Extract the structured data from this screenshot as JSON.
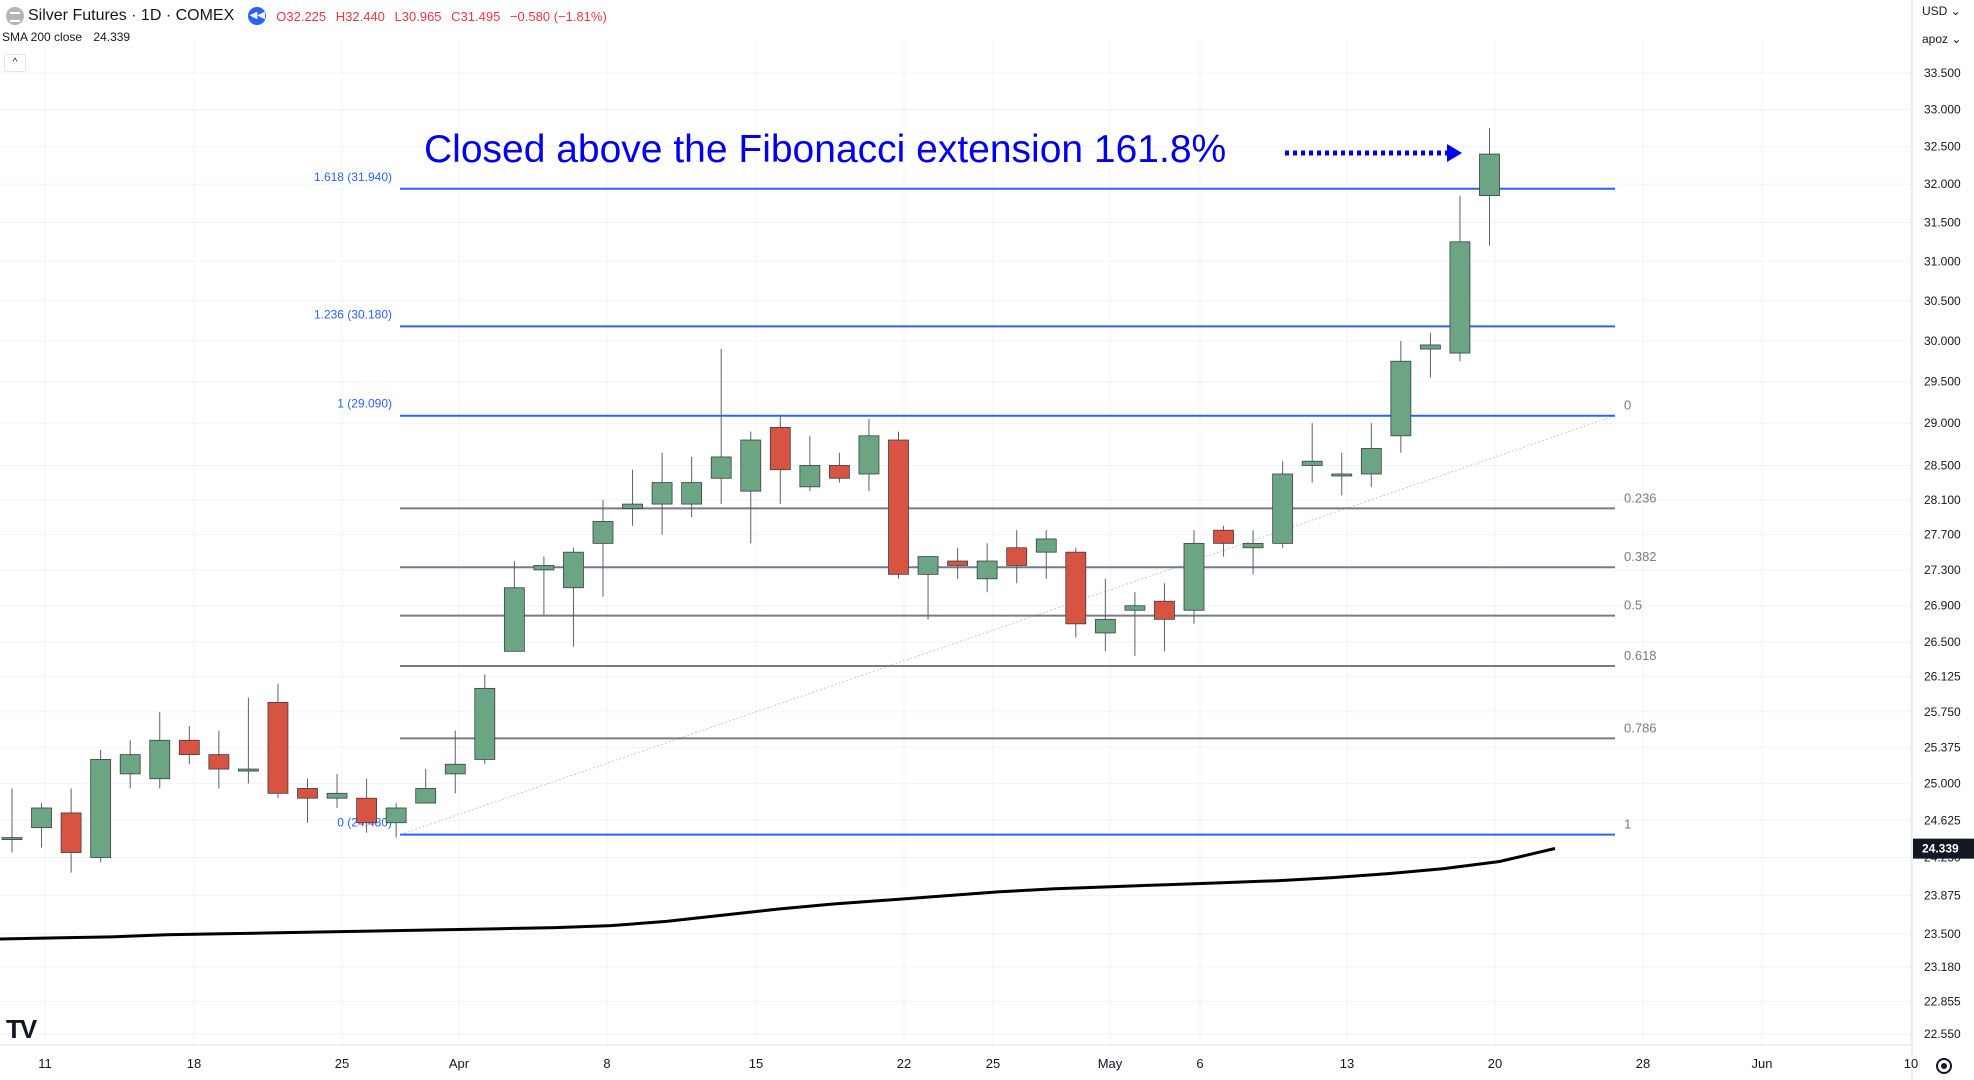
{
  "header": {
    "symbol": "Silver Futures · 1D · COMEX",
    "open": "O32.225",
    "high": "H32.440",
    "low": "L30.965",
    "close": "C31.495",
    "change": "−0.580 (−1.81%)"
  },
  "indicator": {
    "label": "SMA 200 close",
    "value": "24.339"
  },
  "collapse_label": "^",
  "price_axis": {
    "currency": "USD ⌄",
    "mode": "apoz ⌄",
    "labels": [
      "33.500",
      "33.000",
      "32.500",
      "32.000",
      "31.500",
      "31.000",
      "30.500",
      "30.000",
      "29.500",
      "29.000",
      "28.500",
      "28.100",
      "27.700",
      "27.300",
      "26.900",
      "26.500",
      "26.125",
      "25.750",
      "25.375",
      "25.000",
      "24.625",
      "24.250",
      "23.875",
      "23.500",
      "23.180",
      "22.855",
      "22.550"
    ],
    "current_label": "24.339"
  },
  "time_axis": {
    "labels": [
      "11",
      "18",
      "25",
      "Apr",
      "8",
      "15",
      "22",
      "25",
      "May",
      "6",
      "13",
      "20",
      "28",
      "Jun",
      "10"
    ]
  },
  "annotation": "Closed above the Fibonacci extension 161.8%",
  "fib_extension_labels": [
    "1.618 (31.940)",
    "1.236 (30.180)",
    "1 (29.090)",
    "0 (24.480)"
  ],
  "fib_retracement_labels": [
    "0",
    "0.236",
    "0.382",
    "0.5",
    "0.618",
    "0.786",
    "1"
  ],
  "chart_data": {
    "type": "candlestick",
    "symbol": "Silver Futures",
    "interval": "1D",
    "y_axis_scale": "log",
    "ylim": [
      22.55,
      33.5
    ],
    "up_color": "#6ba583",
    "down_color": "#d75442",
    "candles": [
      {
        "x": "Mar 8",
        "o": 24.45,
        "h": 24.95,
        "l": 24.3,
        "c": 24.45
      },
      {
        "x": "Mar 11",
        "o": 24.55,
        "h": 24.8,
        "l": 24.35,
        "c": 24.75
      },
      {
        "x": "Mar 12",
        "o": 24.7,
        "h": 24.95,
        "l": 24.1,
        "c": 24.3
      },
      {
        "x": "Mar 13",
        "o": 24.25,
        "h": 25.35,
        "l": 24.2,
        "c": 25.25
      },
      {
        "x": "Mar 14",
        "o": 25.1,
        "h": 25.45,
        "l": 24.95,
        "c": 25.3
      },
      {
        "x": "Mar 15",
        "o": 25.05,
        "h": 25.75,
        "l": 24.95,
        "c": 25.45
      },
      {
        "x": "Mar 18",
        "o": 25.45,
        "h": 25.6,
        "l": 25.2,
        "c": 25.3
      },
      {
        "x": "Mar 19",
        "o": 25.3,
        "h": 25.55,
        "l": 24.95,
        "c": 25.15
      },
      {
        "x": "Mar 20",
        "o": 25.15,
        "h": 25.9,
        "l": 25.0,
        "c": 25.15
      },
      {
        "x": "Mar 21",
        "o": 25.85,
        "h": 26.05,
        "l": 24.85,
        "c": 24.9
      },
      {
        "x": "Mar 22",
        "o": 24.95,
        "h": 25.05,
        "l": 24.6,
        "c": 24.85
      },
      {
        "x": "Mar 25",
        "o": 24.85,
        "h": 25.1,
        "l": 24.75,
        "c": 24.9
      },
      {
        "x": "Mar 26",
        "o": 24.85,
        "h": 25.05,
        "l": 24.5,
        "c": 24.6
      },
      {
        "x": "Mar 27",
        "o": 24.6,
        "h": 24.8,
        "l": 24.45,
        "c": 24.75
      },
      {
        "x": "Mar 28",
        "o": 24.8,
        "h": 25.15,
        "l": 24.8,
        "c": 24.95
      },
      {
        "x": "Apr 1",
        "o": 25.1,
        "h": 25.55,
        "l": 24.9,
        "c": 25.2
      },
      {
        "x": "Apr 2",
        "o": 25.25,
        "h": 26.15,
        "l": 25.2,
        "c": 26.0
      },
      {
        "x": "Apr 3",
        "o": 26.4,
        "h": 27.4,
        "l": 26.4,
        "c": 27.1
      },
      {
        "x": "Apr 4",
        "o": 27.3,
        "h": 27.45,
        "l": 26.8,
        "c": 27.35
      },
      {
        "x": "Apr 5",
        "o": 27.1,
        "h": 27.55,
        "l": 26.45,
        "c": 27.5
      },
      {
        "x": "Apr 8",
        "o": 27.6,
        "h": 28.1,
        "l": 27.0,
        "c": 27.85
      },
      {
        "x": "Apr 9",
        "o": 28.0,
        "h": 28.45,
        "l": 27.8,
        "c": 28.05
      },
      {
        "x": "Apr 10",
        "o": 28.05,
        "h": 28.65,
        "l": 27.7,
        "c": 28.3
      },
      {
        "x": "Apr 11",
        "o": 28.05,
        "h": 28.6,
        "l": 27.9,
        "c": 28.3
      },
      {
        "x": "Apr 12",
        "o": 28.35,
        "h": 29.9,
        "l": 28.05,
        "c": 28.6
      },
      {
        "x": "Apr 15",
        "o": 28.2,
        "h": 28.9,
        "l": 27.6,
        "c": 28.8
      },
      {
        "x": "Apr 16",
        "o": 28.95,
        "h": 29.1,
        "l": 28.05,
        "c": 28.45
      },
      {
        "x": "Apr 17",
        "o": 28.25,
        "h": 28.85,
        "l": 28.2,
        "c": 28.5
      },
      {
        "x": "Apr 18",
        "o": 28.5,
        "h": 28.65,
        "l": 28.3,
        "c": 28.35
      },
      {
        "x": "Apr 19",
        "o": 28.4,
        "h": 29.05,
        "l": 28.2,
        "c": 28.85
      },
      {
        "x": "Apr 22",
        "o": 28.8,
        "h": 28.9,
        "l": 27.2,
        "c": 27.25
      },
      {
        "x": "Apr 23",
        "o": 27.25,
        "h": 27.4,
        "l": 26.75,
        "c": 27.45
      },
      {
        "x": "Apr 24",
        "o": 27.4,
        "h": 27.55,
        "l": 27.2,
        "c": 27.35
      },
      {
        "x": "Apr 25",
        "o": 27.2,
        "h": 27.6,
        "l": 27.05,
        "c": 27.4
      },
      {
        "x": "Apr 26",
        "o": 27.55,
        "h": 27.75,
        "l": 27.15,
        "c": 27.35
      },
      {
        "x": "Apr 29",
        "o": 27.5,
        "h": 27.75,
        "l": 27.2,
        "c": 27.65
      },
      {
        "x": "Apr 30",
        "o": 27.5,
        "h": 27.55,
        "l": 26.55,
        "c": 26.7
      },
      {
        "x": "May 1",
        "o": 26.6,
        "h": 27.2,
        "l": 26.4,
        "c": 26.75
      },
      {
        "x": "May 2",
        "o": 26.85,
        "h": 27.05,
        "l": 26.35,
        "c": 26.9
      },
      {
        "x": "May 3",
        "o": 26.95,
        "h": 27.15,
        "l": 26.4,
        "c": 26.75
      },
      {
        "x": "May 6",
        "o": 26.85,
        "h": 27.75,
        "l": 26.7,
        "c": 27.6
      },
      {
        "x": "May 7",
        "o": 27.75,
        "h": 27.8,
        "l": 27.45,
        "c": 27.6
      },
      {
        "x": "May 8",
        "o": 27.55,
        "h": 27.75,
        "l": 27.25,
        "c": 27.6
      },
      {
        "x": "May 9",
        "o": 27.6,
        "h": 28.55,
        "l": 27.55,
        "c": 28.4
      },
      {
        "x": "May 10",
        "o": 28.5,
        "h": 29.0,
        "l": 28.3,
        "c": 28.55
      },
      {
        "x": "May 13",
        "o": 28.4,
        "h": 28.65,
        "l": 28.15,
        "c": 28.4
      },
      {
        "x": "May 14",
        "o": 28.4,
        "h": 29.0,
        "l": 28.25,
        "c": 28.7
      },
      {
        "x": "May 15",
        "o": 28.85,
        "h": 30.0,
        "l": 28.65,
        "c": 29.75
      },
      {
        "x": "May 16",
        "o": 29.9,
        "h": 30.1,
        "l": 29.55,
        "c": 29.95
      },
      {
        "x": "May 17",
        "o": 29.85,
        "h": 31.85,
        "l": 29.75,
        "c": 31.25
      },
      {
        "x": "May 20",
        "o": 31.85,
        "h": 32.75,
        "l": 31.2,
        "c": 32.4
      }
    ],
    "sma200": [
      23.45,
      23.46,
      23.47,
      23.49,
      23.5,
      23.51,
      23.52,
      23.53,
      23.54,
      23.55,
      23.56,
      23.58,
      23.62,
      23.68,
      23.74,
      23.79,
      23.83,
      23.87,
      23.91,
      23.94,
      23.96,
      23.98,
      24.0,
      24.02,
      24.05,
      24.09,
      24.14,
      24.21,
      24.34
    ],
    "fib_extension": {
      "levels": [
        {
          "ratio": "0",
          "price": 24.48
        },
        {
          "ratio": "1",
          "price": 29.09
        },
        {
          "ratio": "1.236",
          "price": 30.18
        },
        {
          "ratio": "1.618",
          "price": 31.94
        }
      ]
    },
    "fib_retracement": {
      "levels": [
        {
          "ratio": "0",
          "price": 29.09
        },
        {
          "ratio": "0.236",
          "price": 28.0
        },
        {
          "ratio": "0.382",
          "price": 27.33
        },
        {
          "ratio": "0.5",
          "price": 26.79
        },
        {
          "ratio": "0.618",
          "price": 26.24
        },
        {
          "ratio": "0.786",
          "price": 25.47
        },
        {
          "ratio": "1",
          "price": 24.48
        }
      ]
    }
  }
}
